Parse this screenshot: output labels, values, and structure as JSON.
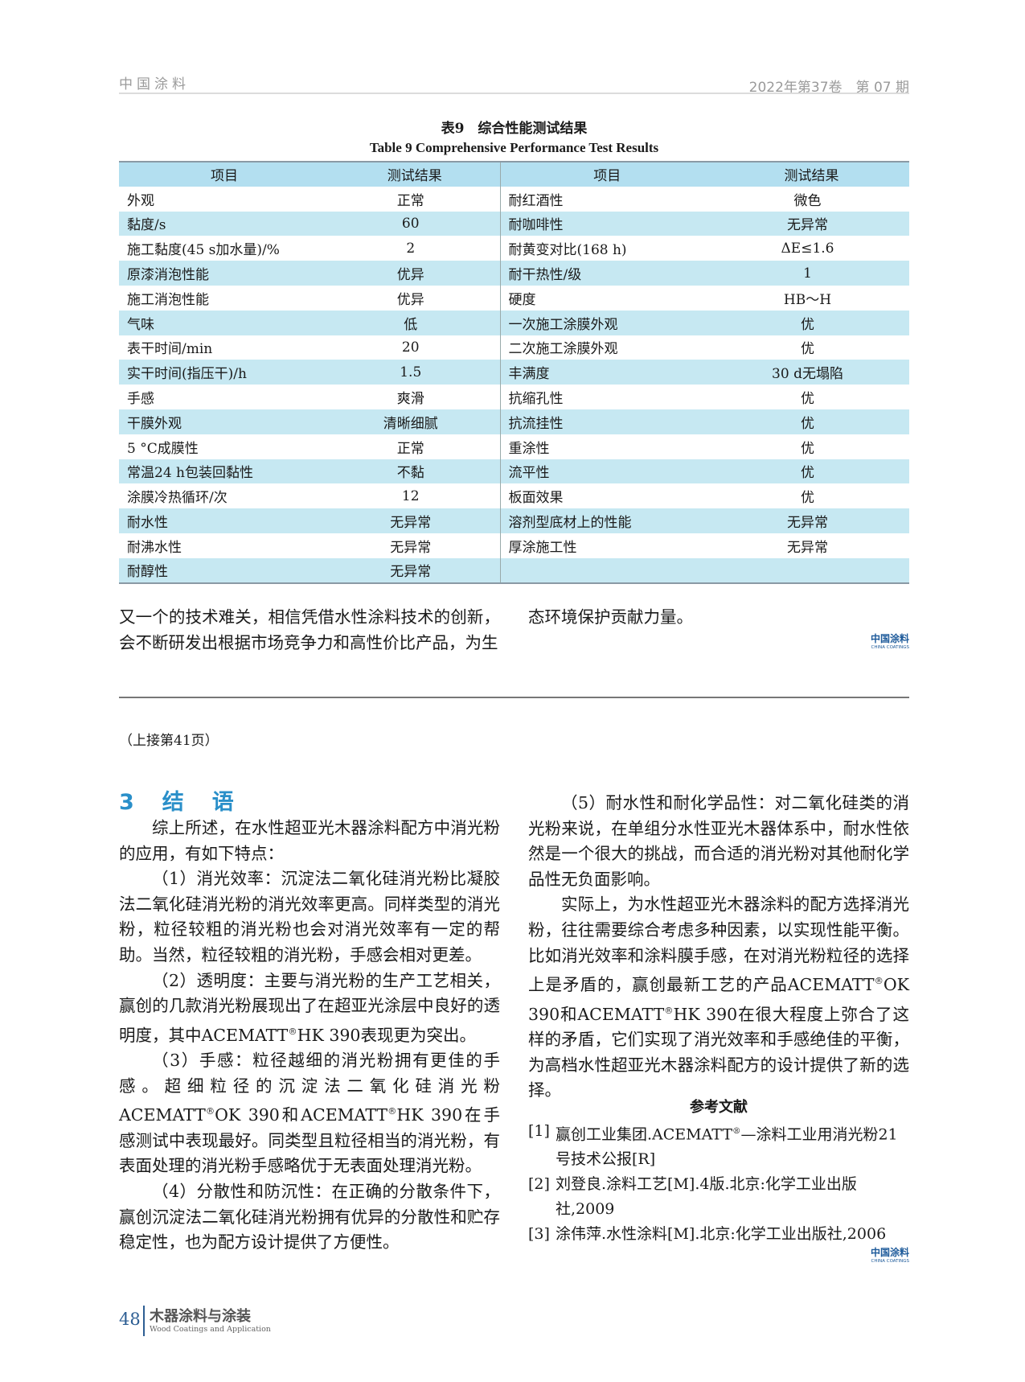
{
  "header": {
    "journal": "中国涂料",
    "issue": "2022年第37卷　第 07 期"
  },
  "table": {
    "caption_cn": "表9　综合性能测试结果",
    "caption_en": "Table 9   Comprehensive Performance Test Results",
    "headers": [
      "项目",
      "测试结果",
      "项目",
      "测试结果"
    ],
    "rows": [
      [
        "外观",
        "正常",
        "耐红酒性",
        "微色"
      ],
      [
        "黏度/s",
        "60",
        "耐咖啡性",
        "无异常"
      ],
      [
        "施工黏度(45 s加水量)/%",
        "2",
        "耐黄变对比(168 h)",
        "ΔE≤1.6"
      ],
      [
        "原漆消泡性能",
        "优异",
        "耐干热性/级",
        "1"
      ],
      [
        "施工消泡性能",
        "优异",
        "硬度",
        "HB～H"
      ],
      [
        "气味",
        "低",
        "一次施工涂膜外观",
        "优"
      ],
      [
        "表干时间/min",
        "20",
        "二次施工涂膜外观",
        "优"
      ],
      [
        "实干时间(指压干)/h",
        "1.5",
        "丰满度",
        "30 d无塌陷"
      ],
      [
        "手感",
        "爽滑",
        "抗缩孔性",
        "优"
      ],
      [
        "干膜外观",
        "清晰细腻",
        "抗流挂性",
        "优"
      ],
      [
        "5 °C成膜性",
        "正常",
        "重涂性",
        "优"
      ],
      [
        "常温24 h包装回黏性",
        "不黏",
        "流平性",
        "优"
      ],
      [
        "涂膜冷热循环/次",
        "12",
        "板面效果",
        "优"
      ],
      [
        "耐水性",
        "无异常",
        "溶剂型底材上的性能",
        "无异常"
      ],
      [
        "耐沸水性",
        "无异常",
        "厚涂施工性",
        "无异常"
      ],
      [
        "耐醇性",
        "无异常",
        "",
        ""
      ]
    ]
  },
  "continuation": {
    "left": "又一个的技术难关，相信凭借水性涂料技术的创新，会不断研发出根据市场竞争力和高性价比产品，为生",
    "right": "态环境保护贡献力量。"
  },
  "logo": {
    "cn": "中国涂料",
    "en": "CHINA COATINGS"
  },
  "continued_note": "（上接第41页）",
  "section": {
    "heading": "3　结　语"
  },
  "left_paragraphs": [
    "综上所述，在水性超亚光木器涂料配方中消光粉的应用，有如下特点：",
    "（1）消光效率：沉淀法二氧化硅消光粉比凝胶法二氧化硅消光粉的消光效率更高。同样类型的消光粉，粒径较粗的消光粉也会对消光效率有一定的帮助。当然，粒径较粗的消光粉，手感会相对更差。",
    "（2）透明度：主要与消光粉的生产工艺相关，赢创的几款消光粉展现出了在超亚光涂层中良好的透明度，其中ACEMATT®HK 390表现更为突出。",
    "（3）手感：粒径越细的消光粉拥有更佳的手感。超细粒径的沉淀法二氧化硅消光粉ACEMATT®OK 390和ACEMATT®HK 390在手感测试中表现最好。同类型且粒径相当的消光粉，有表面处理的消光粉手感略优于无表面处理消光粉。",
    "（4）分散性和防沉性：在正确的分散条件下，赢创沉淀法二氧化硅消光粉拥有优异的分散性和贮存稳定性，也为配方设计提供了方便性。"
  ],
  "right_paragraphs": [
    "（5）耐水性和耐化学品性：对二氧化硅类的消光粉来说，在单组分水性亚光木器体系中，耐水性依然是一个很大的挑战，而合适的消光粉对其他耐化学品性无负面影响。",
    "实际上，为水性超亚光木器涂料的配方选择消光粉，往往需要综合考虑多种因素，以实现性能平衡。比如消光效率和涂料膜手感，在对消光粉粒径的选择上是矛盾的，赢创最新工艺的产品ACEMATT®OK 390和ACEMATT®HK 390在很大程度上弥合了这样的矛盾，它们实现了消光效率和手感绝佳的平衡，为高档水性超亚光木器涂料配方的设计提供了新的选择。"
  ],
  "references": {
    "title": "参考文献",
    "items": [
      {
        "n": "[1]",
        "text": "赢创工业集团.ACEMATT®—涂料工业用消光粉21号技术公报[R]"
      },
      {
        "n": "[2]",
        "text": "刘登良.涂料工艺[M].4版.北京:化学工业出版社,2009"
      },
      {
        "n": "[3]",
        "text": "涂伟萍.水性涂料[M].北京:化学工业出版社,2006"
      }
    ]
  },
  "footer": {
    "page": "48",
    "journal_cn": "木器涂料与涂装",
    "journal_en": "Wood Coatings and Application"
  },
  "colors": {
    "header_row": "#b3dff0",
    "band_row": "#c6e8f2",
    "heading": "#2a8fc9",
    "footer": "#2d5e93"
  }
}
